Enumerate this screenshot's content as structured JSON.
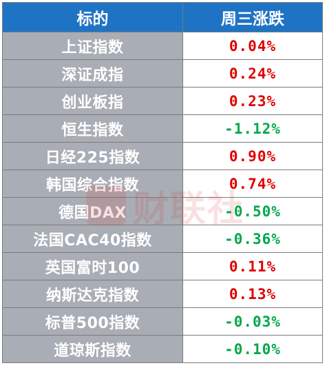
{
  "table": {
    "headers": [
      "标的",
      "周三涨跌"
    ],
    "rows": [
      {
        "name": "上证指数",
        "change": "0.04%",
        "color": "#e00000"
      },
      {
        "name": "深证成指",
        "change": "0.24%",
        "color": "#e00000"
      },
      {
        "name": "创业板指",
        "change": "0.23%",
        "color": "#e00000"
      },
      {
        "name": "恒生指数",
        "change": "-1.12%",
        "color": "#00a84a"
      },
      {
        "name": "日经225指数",
        "change": "0.90%",
        "color": "#e00000"
      },
      {
        "name": "韩国综合指数",
        "change": "0.74%",
        "color": "#e00000"
      },
      {
        "name": "德国DAX",
        "change": "-0.50%",
        "color": "#00a84a"
      },
      {
        "name": "法国CAC40指数",
        "change": "-0.36%",
        "color": "#00a84a"
      },
      {
        "name": "英国富时100",
        "change": "0.11%",
        "color": "#e00000"
      },
      {
        "name": "纳斯达克指数",
        "change": "0.13%",
        "color": "#e00000"
      },
      {
        "name": "标普500指数",
        "change": "-0.03%",
        "color": "#00a84a"
      },
      {
        "name": "道琼斯指数",
        "change": "-0.10%",
        "color": "#00a84a"
      }
    ]
  },
  "watermark": {
    "text": "财联社"
  },
  "colors": {
    "header_bg": "#1f73c4",
    "name_bg": "#a9adb5",
    "up": "#e00000",
    "down": "#00a84a"
  }
}
